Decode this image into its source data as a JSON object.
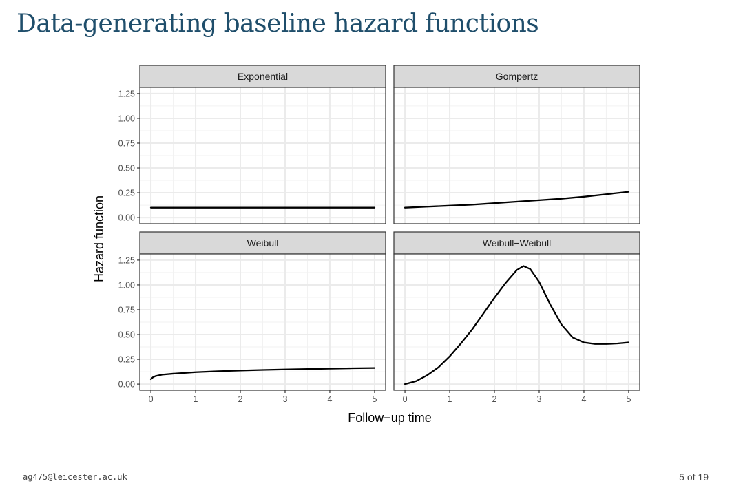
{
  "slide": {
    "title": "Data-generating baseline hazard functions",
    "footer_email": "ag475@leicester.ac.uk",
    "page_indicator": "5 of 19"
  },
  "chart_data": {
    "type": "line",
    "layout": "facet_grid_2x2",
    "xlabel": "Follow−up time",
    "ylabel": "Hazard function",
    "xlim": [
      0,
      5
    ],
    "ylim": [
      0,
      1.25
    ],
    "x_ticks": [
      "0",
      "1",
      "2",
      "3",
      "4",
      "5"
    ],
    "y_ticks": [
      "0.00",
      "0.25",
      "0.50",
      "0.75",
      "1.00",
      "1.25"
    ],
    "grid": true,
    "line_color": "#000000",
    "panels": [
      {
        "name": "Exponential",
        "x": [
          0,
          0.5,
          1,
          1.5,
          2,
          2.5,
          3,
          3.5,
          4,
          4.5,
          5
        ],
        "y": [
          0.1,
          0.1,
          0.1,
          0.1,
          0.1,
          0.1,
          0.1,
          0.1,
          0.1,
          0.1,
          0.1
        ]
      },
      {
        "name": "Gompertz",
        "x": [
          0,
          0.5,
          1,
          1.5,
          2,
          2.5,
          3,
          3.5,
          4,
          4.5,
          5
        ],
        "y": [
          0.1,
          0.11,
          0.12,
          0.13,
          0.145,
          0.16,
          0.175,
          0.19,
          0.21,
          0.235,
          0.26
        ]
      },
      {
        "name": "Weibull",
        "x": [
          0,
          0.05,
          0.1,
          0.25,
          0.5,
          1,
          1.5,
          2,
          2.5,
          3,
          3.5,
          4,
          4.5,
          5
        ],
        "y": [
          0.05,
          0.07,
          0.08,
          0.095,
          0.105,
          0.12,
          0.13,
          0.137,
          0.143,
          0.148,
          0.152,
          0.156,
          0.16,
          0.163
        ]
      },
      {
        "name": "Weibull−Weibull",
        "x": [
          0,
          0.25,
          0.5,
          0.75,
          1,
          1.25,
          1.5,
          1.75,
          2,
          2.25,
          2.5,
          2.65,
          2.8,
          3,
          3.25,
          3.5,
          3.75,
          4,
          4.25,
          4.5,
          4.75,
          5
        ],
        "y": [
          0.0,
          0.03,
          0.09,
          0.17,
          0.28,
          0.41,
          0.55,
          0.71,
          0.87,
          1.02,
          1.15,
          1.19,
          1.16,
          1.03,
          0.8,
          0.6,
          0.47,
          0.42,
          0.405,
          0.405,
          0.41,
          0.42
        ]
      }
    ]
  }
}
